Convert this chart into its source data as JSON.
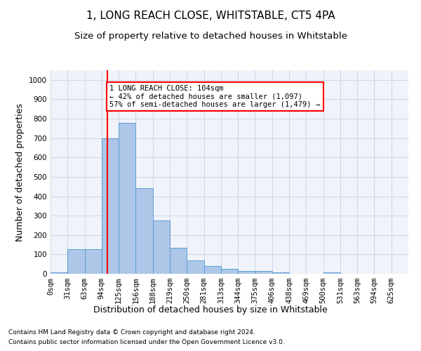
{
  "title": "1, LONG REACH CLOSE, WHITSTABLE, CT5 4PA",
  "subtitle": "Size of property relative to detached houses in Whitstable",
  "xlabel": "Distribution of detached houses by size in Whitstable",
  "ylabel": "Number of detached properties",
  "footnote1": "Contains HM Land Registry data © Crown copyright and database right 2024.",
  "footnote2": "Contains public sector information licensed under the Open Government Licence v3.0.",
  "bin_labels": [
    "0sqm",
    "31sqm",
    "63sqm",
    "94sqm",
    "125sqm",
    "156sqm",
    "188sqm",
    "219sqm",
    "250sqm",
    "281sqm",
    "313sqm",
    "344sqm",
    "375sqm",
    "406sqm",
    "438sqm",
    "469sqm",
    "500sqm",
    "531sqm",
    "563sqm",
    "594sqm",
    "625sqm"
  ],
  "bar_values": [
    8,
    128,
    128,
    700,
    778,
    443,
    275,
    135,
    68,
    40,
    25,
    13,
    13,
    8,
    0,
    0,
    8,
    0,
    0,
    0,
    0
  ],
  "bar_color": "#aec6e8",
  "bar_edge_color": "#5a9fd4",
  "grid_color": "#d0d8e8",
  "bg_color": "#f0f4fa",
  "fig_bg_color": "#ffffff",
  "property_size": 104,
  "vline_color": "red",
  "annotation_text": "1 LONG REACH CLOSE: 104sqm\n← 42% of detached houses are smaller (1,097)\n57% of semi-detached houses are larger (1,479) →",
  "annotation_box_color": "white",
  "annotation_box_edge": "red",
  "ylim": [
    0,
    1050
  ],
  "yticks": [
    0,
    100,
    200,
    300,
    400,
    500,
    600,
    700,
    800,
    900,
    1000
  ],
  "bin_width": 31,
  "title_fontsize": 11,
  "subtitle_fontsize": 9.5,
  "ylabel_fontsize": 9,
  "xlabel_fontsize": 9,
  "tick_fontsize": 7.5,
  "footnote_fontsize": 6.5
}
